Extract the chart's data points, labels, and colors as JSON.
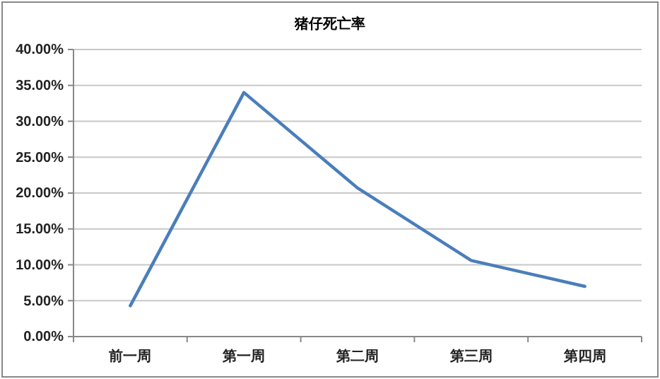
{
  "chart_data": {
    "type": "line",
    "title": "猪仔死亡率",
    "categories": [
      "前一周",
      "第一周",
      "第二周",
      "第三周",
      "第四周"
    ],
    "series": [
      {
        "color": "#4a7ebb",
        "values": [
          4.3,
          34.0,
          20.7,
          10.6,
          7.0
        ]
      }
    ],
    "ylim": [
      0,
      40
    ],
    "yticks": [
      {
        "value": 0,
        "label": "0.00%"
      },
      {
        "value": 5,
        "label": "5.00%"
      },
      {
        "value": 10,
        "label": "10.00%"
      },
      {
        "value": 15,
        "label": "15.00%"
      },
      {
        "value": 20,
        "label": "20.00%"
      },
      {
        "value": 25,
        "label": "25.00%"
      },
      {
        "value": 30,
        "label": "30.00%"
      },
      {
        "value": 35,
        "label": "35.00%"
      },
      {
        "value": 40,
        "label": "40.00%"
      }
    ],
    "grid": "y",
    "marker": "none",
    "line_style": "solid"
  }
}
